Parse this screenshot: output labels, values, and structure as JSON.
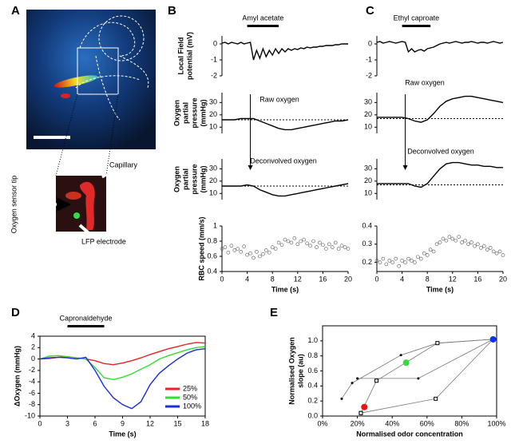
{
  "panel_labels": [
    "A",
    "B",
    "C",
    "D",
    "E"
  ],
  "image_labels": {
    "capillary": "Capillary",
    "sensor": "Oxygen sensor tip",
    "electrode": "LFP electrode"
  },
  "chart_data": [
    {
      "type": "line",
      "ylabel": [
        "Local Field",
        "potential (mV)"
      ],
      "xlim": [
        0,
        20
      ],
      "ylim": [
        -2,
        0.5
      ],
      "yticks": [
        0,
        -1,
        -2
      ],
      "stimulus": {
        "label": "Amyl acetate",
        "range": [
          4,
          9
        ]
      },
      "x": [
        0,
        0.5,
        1,
        1.5,
        2,
        2.5,
        3,
        3.5,
        4,
        4.5,
        5,
        5.5,
        6,
        6.5,
        7,
        7.5,
        8,
        8.5,
        9,
        9.5,
        10,
        10.5,
        11,
        11.5,
        12,
        12.5,
        13,
        13.5,
        14,
        14.5,
        15,
        15.5,
        16,
        16.5,
        17,
        17.5,
        18,
        18.5,
        19,
        19.5,
        20
      ],
      "series": [
        {
          "color": "#000000",
          "values": [
            0.05,
            0.1,
            0,
            0.1,
            0.05,
            0,
            0.1,
            0,
            0.05,
            0.1,
            -1.0,
            -0.4,
            -0.9,
            -0.3,
            -0.8,
            -0.4,
            -0.7,
            -0.3,
            -0.6,
            -0.3,
            -0.5,
            -0.3,
            -0.4,
            -0.3,
            -0.35,
            -0.25,
            -0.3,
            -0.2,
            -0.25,
            -0.2,
            -0.2,
            -0.15,
            -0.15,
            -0.1,
            -0.1,
            -0.1,
            -0.05,
            -0.05,
            0,
            0,
            0
          ]
        }
      ]
    },
    {
      "type": "line",
      "ylabel": [
        "Oxygen",
        "partial",
        "pressure",
        "(mmHg)"
      ],
      "xlim": [
        0,
        20
      ],
      "ylim": [
        5,
        38
      ],
      "yticks": [
        30,
        20,
        10
      ],
      "annotation": "Raw oxygen",
      "baseline": 16,
      "event_time": 4.5,
      "x": [
        0,
        1,
        2,
        3,
        4,
        5,
        6,
        7,
        8,
        9,
        10,
        11,
        12,
        13,
        14,
        15,
        16,
        17,
        18,
        19,
        20
      ],
      "series": [
        {
          "color": "#000000",
          "values": [
            16,
            16,
            16,
            17,
            17,
            17,
            15,
            13,
            11,
            9,
            8,
            8,
            9,
            10,
            11,
            12,
            13,
            14,
            15,
            15,
            16
          ]
        }
      ]
    },
    {
      "type": "line",
      "ylabel": [
        "Oxygen",
        "partial",
        "pressure",
        "(mmHg)"
      ],
      "xlim": [
        0,
        20
      ],
      "ylim": [
        5,
        38
      ],
      "yticks": [
        30,
        20,
        10
      ],
      "annotation": "Deconvolved oxygen",
      "baseline": 16,
      "x": [
        0,
        1,
        2,
        3,
        4,
        5,
        6,
        7,
        8,
        9,
        10,
        11,
        12,
        13,
        14,
        15,
        16,
        17,
        18,
        19,
        20
      ],
      "series": [
        {
          "color": "#000000",
          "values": [
            16,
            16,
            16,
            16,
            17,
            16,
            13,
            11,
            9,
            8,
            8,
            9,
            10,
            11,
            12,
            13,
            14,
            15,
            16,
            17,
            18
          ]
        }
      ]
    },
    {
      "type": "scatter",
      "ylabel": [
        "RBC speed (mm/s)"
      ],
      "xlabel": "Time (s)",
      "xlim": [
        0,
        20
      ],
      "ylim": [
        0.4,
        1
      ],
      "yticks": [
        1,
        0.8,
        0.6,
        0.4
      ],
      "xticks": [
        0,
        4,
        8,
        12,
        16,
        20
      ],
      "x": [
        0,
        0.5,
        1,
        1.5,
        2,
        2.5,
        3,
        3.5,
        4,
        4.5,
        5,
        5.5,
        6,
        6.5,
        7,
        7.5,
        8,
        8.5,
        9,
        9.5,
        10,
        10.5,
        11,
        11.5,
        12,
        12.5,
        13,
        13.5,
        14,
        14.5,
        15,
        15.5,
        16,
        16.5,
        17,
        17.5,
        18,
        18.5,
        19,
        19.5,
        20
      ],
      "series": [
        {
          "color": "#555555",
          "marker": "circle-open",
          "values": [
            0.7,
            0.72,
            0.65,
            0.74,
            0.68,
            0.7,
            0.66,
            0.73,
            0.62,
            0.64,
            0.58,
            0.66,
            0.6,
            0.63,
            0.68,
            0.65,
            0.72,
            0.7,
            0.78,
            0.75,
            0.82,
            0.8,
            0.78,
            0.84,
            0.76,
            0.8,
            0.82,
            0.77,
            0.74,
            0.8,
            0.72,
            0.78,
            0.75,
            0.7,
            0.76,
            0.72,
            0.78,
            0.7,
            0.74,
            0.72,
            0.7
          ]
        }
      ]
    },
    {
      "type": "line",
      "xlim": [
        0,
        20
      ],
      "ylim": [
        -2,
        0.5
      ],
      "yticks": [
        0,
        -1,
        -2
      ],
      "stimulus": {
        "label": "Ethyl caproate",
        "range": [
          4,
          8.5
        ]
      },
      "x": [
        0,
        0.5,
        1,
        1.5,
        2,
        2.5,
        3,
        3.5,
        4,
        4.5,
        5,
        5.5,
        6,
        6.5,
        7,
        7.5,
        8,
        8.5,
        9,
        9.5,
        10,
        10.5,
        11,
        11.5,
        12,
        12.5,
        13,
        13.5,
        14,
        14.5,
        15,
        15.5,
        16,
        16.5,
        17,
        17.5,
        18,
        18.5,
        19,
        19.5,
        20
      ],
      "series": [
        {
          "color": "#000000",
          "values": [
            0.1,
            0.15,
            0.05,
            0.1,
            0.15,
            0.1,
            0.05,
            0.1,
            0.15,
            0.1,
            -0.5,
            -0.3,
            -0.5,
            -0.4,
            -0.35,
            -0.45,
            -0.3,
            -0.25,
            -0.2,
            -0.1,
            0,
            0.05,
            0.1,
            0.05,
            0.1,
            0.15,
            0.1,
            0.05,
            0.1,
            0.1,
            0.15,
            0.1,
            0.05,
            0.1,
            0.1,
            0.05,
            0.1,
            0.15,
            0.1,
            0.05,
            0.1
          ]
        }
      ]
    },
    {
      "type": "line",
      "xlim": [
        0,
        20
      ],
      "ylim": [
        5,
        38
      ],
      "yticks": [
        30,
        20,
        10
      ],
      "annotation": "Raw oxygen",
      "baseline": 17,
      "event_time": 4.5,
      "x": [
        0,
        1,
        2,
        3,
        4,
        5,
        6,
        7,
        8,
        9,
        10,
        11,
        12,
        13,
        14,
        15,
        16,
        17,
        18,
        19,
        20
      ],
      "series": [
        {
          "color": "#000000",
          "values": [
            18,
            18,
            18,
            18,
            18,
            17,
            15,
            14,
            16,
            21,
            27,
            31,
            33,
            34,
            35,
            35,
            34,
            33,
            32,
            31,
            30
          ]
        }
      ]
    },
    {
      "type": "line",
      "xlim": [
        0,
        20
      ],
      "ylim": [
        5,
        38
      ],
      "yticks": [
        30,
        20,
        10
      ],
      "annotation": "Deconvolved oxygen",
      "baseline": 17,
      "x": [
        0,
        1,
        2,
        3,
        4,
        5,
        6,
        7,
        8,
        9,
        10,
        11,
        12,
        13,
        14,
        15,
        16,
        17,
        18,
        19,
        20
      ],
      "series": [
        {
          "color": "#000000",
          "values": [
            18,
            18,
            18,
            18,
            18,
            18,
            16,
            15,
            18,
            24,
            30,
            34,
            35,
            35,
            34,
            33,
            33,
            32,
            32,
            31,
            31
          ]
        }
      ]
    },
    {
      "type": "scatter",
      "xlabel": "Time (s)",
      "xlim": [
        0,
        20
      ],
      "ylim": [
        0.15,
        0.4
      ],
      "yticks": [
        0.4,
        0.3,
        0.2
      ],
      "xticks": [
        0,
        4,
        8,
        12,
        16,
        20
      ],
      "x": [
        0,
        0.5,
        1,
        1.5,
        2,
        2.5,
        3,
        3.5,
        4,
        4.5,
        5,
        5.5,
        6,
        6.5,
        7,
        7.5,
        8,
        8.5,
        9,
        9.5,
        10,
        10.5,
        11,
        11.5,
        12,
        12.5,
        13,
        13.5,
        14,
        14.5,
        15,
        15.5,
        16,
        16.5,
        17,
        17.5,
        18,
        18.5,
        19,
        19.5,
        20
      ],
      "series": [
        {
          "color": "#555555",
          "marker": "circle-open",
          "values": [
            0.21,
            0.2,
            0.22,
            0.19,
            0.21,
            0.2,
            0.22,
            0.18,
            0.21,
            0.2,
            0.22,
            0.21,
            0.2,
            0.23,
            0.22,
            0.25,
            0.24,
            0.27,
            0.26,
            0.3,
            0.31,
            0.33,
            0.32,
            0.34,
            0.33,
            0.32,
            0.34,
            0.31,
            0.32,
            0.3,
            0.31,
            0.29,
            0.3,
            0.28,
            0.29,
            0.27,
            0.28,
            0.26,
            0.25,
            0.26,
            0.24
          ]
        }
      ]
    },
    {
      "type": "line",
      "ylabel": [
        "ΔOxygen (mmHg)"
      ],
      "xlabel": "Time (s)",
      "xlim": [
        0,
        18
      ],
      "ylim": [
        -10,
        4
      ],
      "yticks": [
        4,
        2,
        0,
        -2,
        -4,
        -6,
        -8,
        -10
      ],
      "xticks": [
        0,
        3,
        6,
        9,
        12,
        15,
        18
      ],
      "legend": "lower right",
      "stimulus": {
        "label": "Capronaldehyde",
        "range": [
          3,
          7
        ]
      },
      "x": [
        0,
        1,
        2,
        3,
        4,
        5,
        6,
        7,
        8,
        9,
        10,
        11,
        12,
        13,
        14,
        15,
        16,
        17,
        18
      ],
      "series": [
        {
          "name": "25%",
          "color": "#ee2020",
          "values": [
            0,
            0.1,
            0.3,
            0.4,
            0.2,
            0,
            -0.3,
            -0.8,
            -1.0,
            -0.7,
            -0.3,
            0.2,
            0.8,
            1.3,
            1.8,
            2.2,
            2.6,
            2.9,
            2.8
          ]
        },
        {
          "name": "50%",
          "color": "#33dd33",
          "values": [
            0,
            0.5,
            0.6,
            0.4,
            0.2,
            0,
            -1.5,
            -3.3,
            -3.6,
            -3.2,
            -2.6,
            -1.8,
            -1.0,
            0,
            0.6,
            1.1,
            1.6,
            2.0,
            2.2
          ]
        },
        {
          "name": "100%",
          "color": "#1a2ee0",
          "values": [
            0,
            0.2,
            0.3,
            0.2,
            0,
            0.3,
            -2,
            -4.8,
            -6.8,
            -8,
            -8.7,
            -7.5,
            -4.5,
            -2.5,
            -1.2,
            0,
            1.0,
            1.6,
            1.8
          ]
        }
      ]
    },
    {
      "type": "scatter",
      "ylabel": [
        "Normalised Oxygen",
        "slope (au)"
      ],
      "xlabel": "Normalised odor concentration",
      "xlim": [
        0,
        100
      ],
      "ylim": [
        0,
        1.2
      ],
      "xticks": [
        {
          "value": 0,
          "label": "0%"
        },
        {
          "value": 20,
          "label": "20%"
        },
        {
          "value": 40,
          "label": "40%"
        },
        {
          "value": 60,
          "label": "60%"
        },
        {
          "value": 80,
          "label": "80%"
        },
        {
          "value": 100,
          "label": "100%"
        }
      ],
      "yticks": [
        {
          "value": 0,
          "label": "0.0"
        },
        0.2,
        0.4,
        0.6,
        0.8,
        {
          "value": 1,
          "label": "1.0"
        }
      ],
      "series": [
        {
          "color": "#777777",
          "marker": "dot",
          "connected": true,
          "x": [
            11,
            17,
            45,
            66,
            98
          ],
          "values": [
            0.23,
            0.44,
            0.81,
            0.97,
            1.02
          ]
        },
        {
          "color": "#777777",
          "marker": "dot",
          "connected": true,
          "x": [
            20,
            55,
            98
          ],
          "values": [
            0.5,
            0.5,
            1.02
          ]
        },
        {
          "color": "#777777",
          "marker": "square",
          "connected": true,
          "x": [
            22,
            31,
            66,
            98
          ],
          "values": [
            0.04,
            0.47,
            0.97,
            1.02
          ]
        },
        {
          "color": "#777777",
          "marker": "square",
          "connected": true,
          "x": [
            22,
            65,
            98
          ],
          "values": [
            0.04,
            0.23,
            1.02
          ]
        },
        {
          "color": "#000000",
          "marker": "circle",
          "connected": false,
          "point_colors": [
            "#ee1010",
            "#33dd33",
            "#1030ee"
          ],
          "x": [
            24,
            48,
            98
          ],
          "values": [
            0.12,
            0.71,
            1.02
          ]
        }
      ]
    }
  ]
}
